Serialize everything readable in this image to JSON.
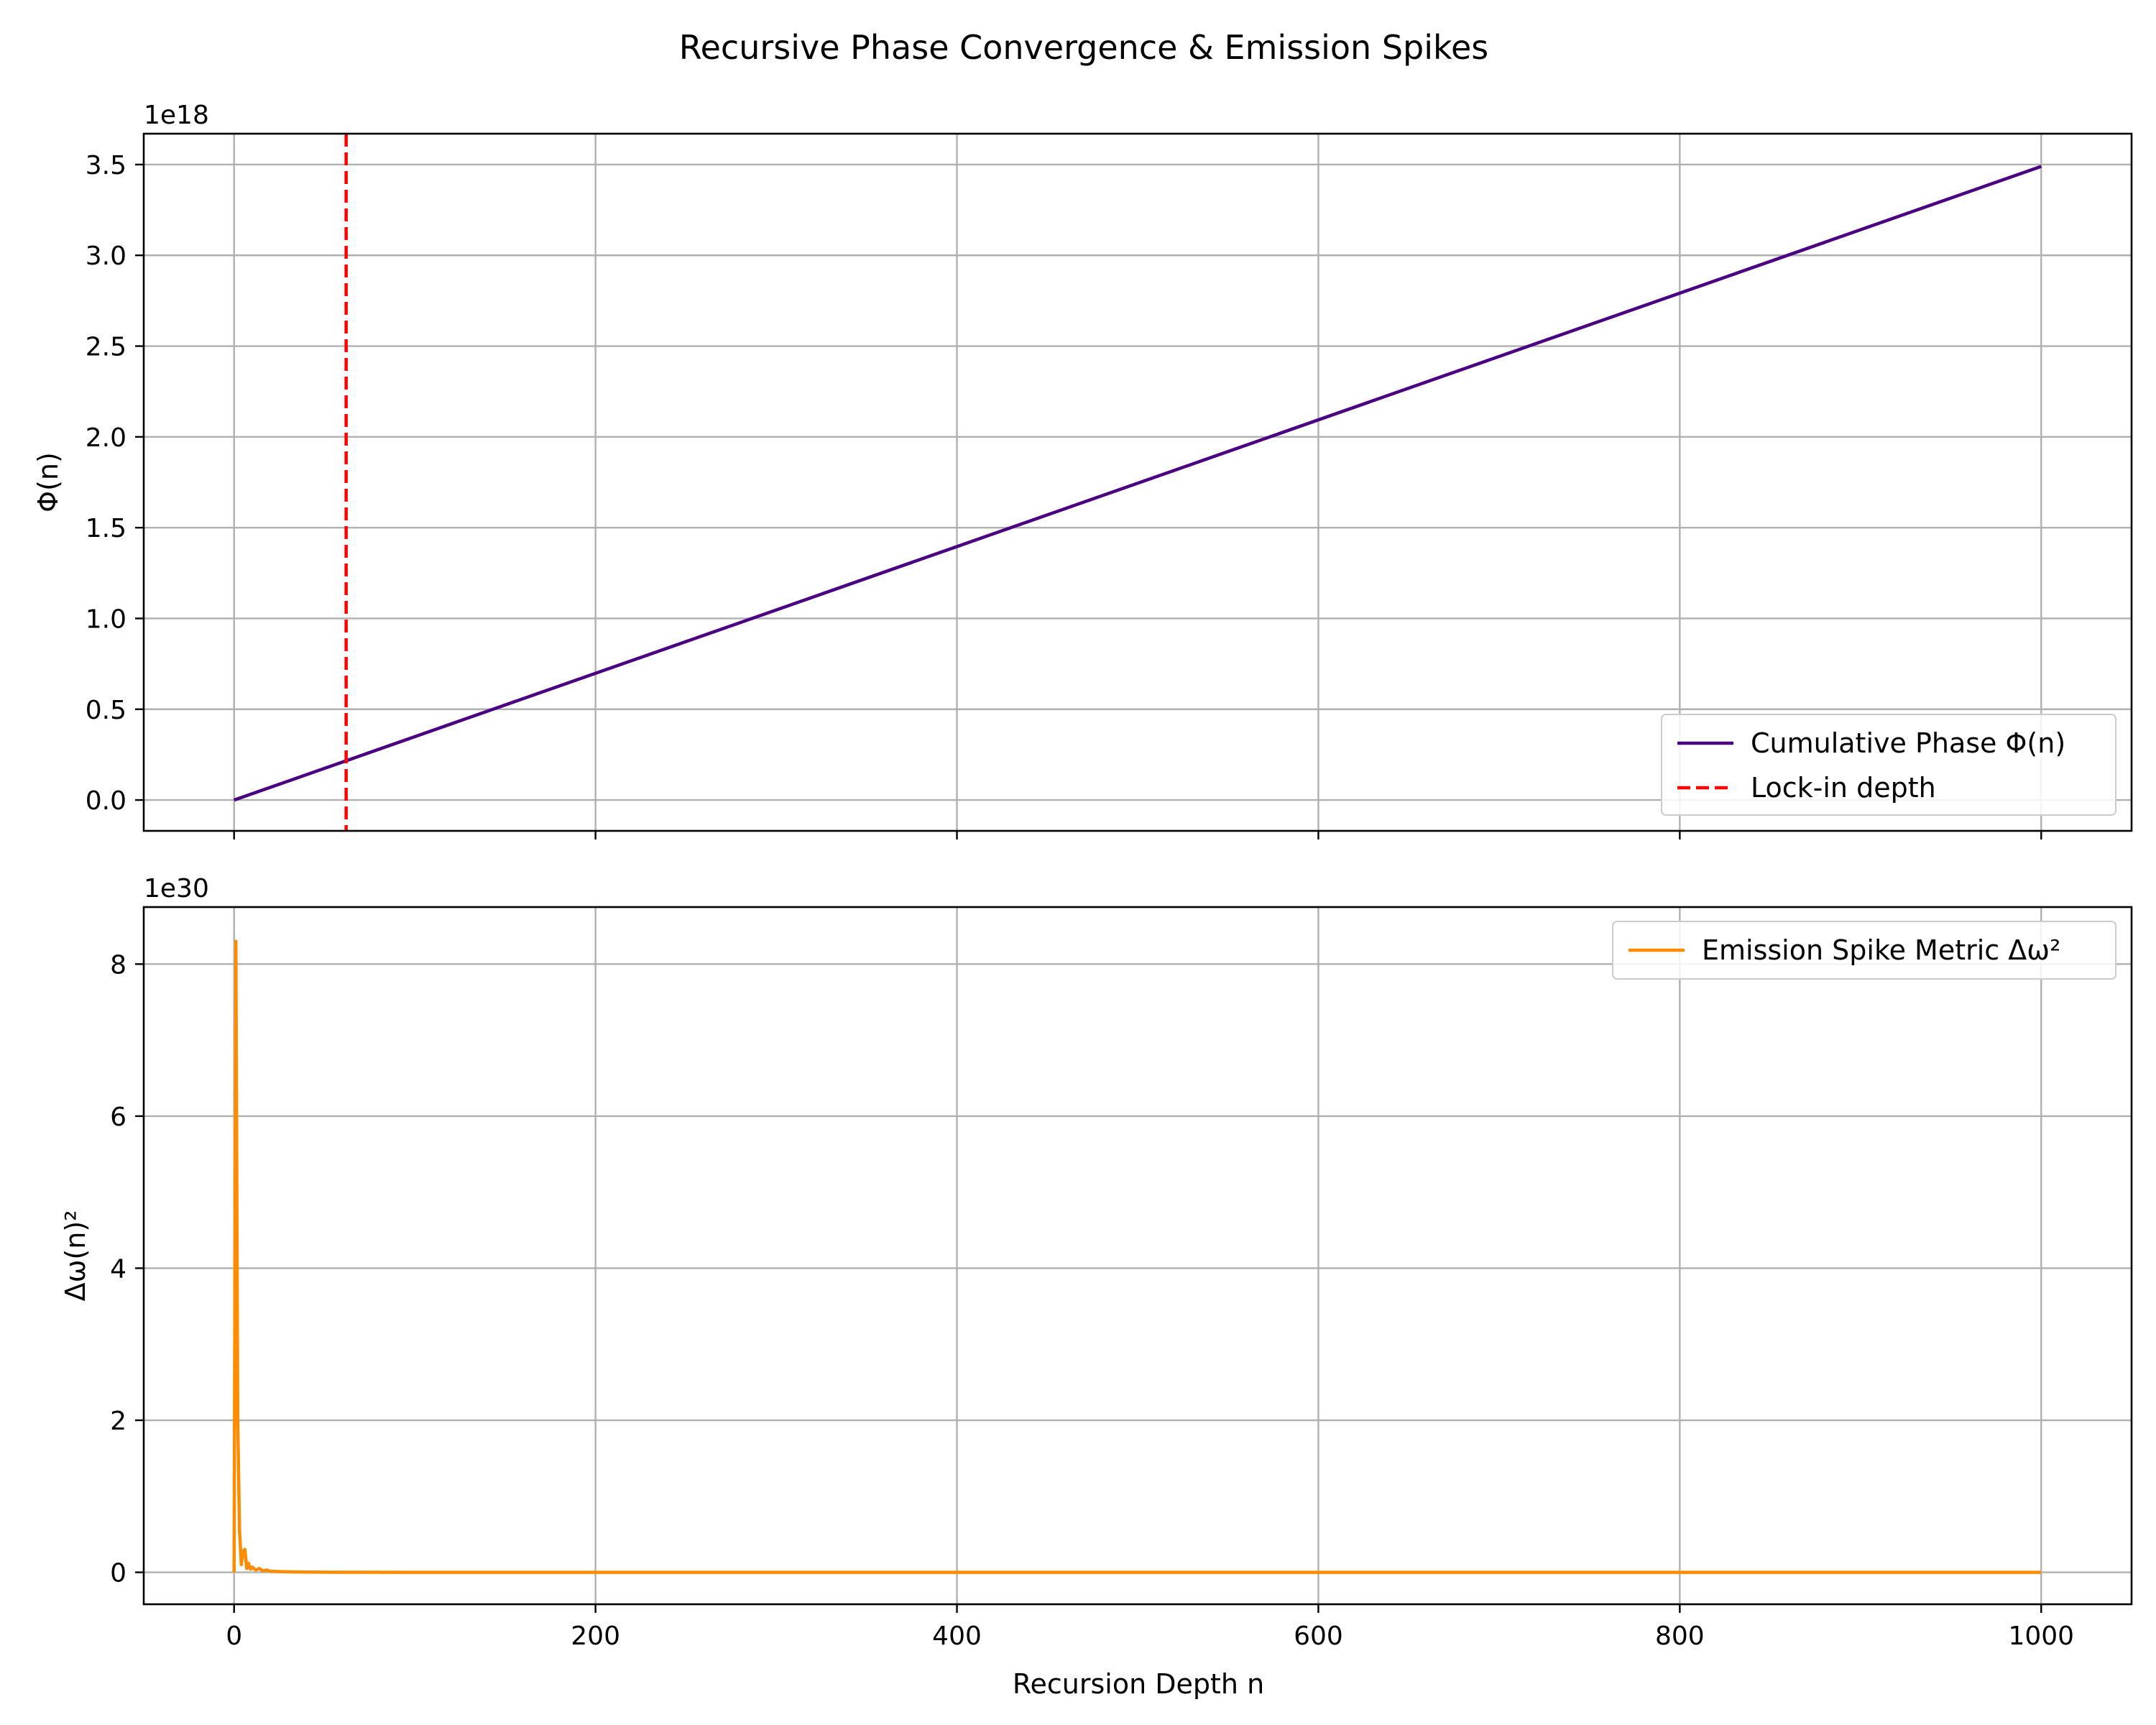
{
  "figure_title": "Recursive Phase Convergence & Emission Spikes",
  "x_tick_labels": [
    "0",
    "200",
    "400",
    "600",
    "800",
    "1000"
  ],
  "xlabel": "Recursion Depth n",
  "chart_data": [
    {
      "type": "line",
      "title": "",
      "ylabel": "Φ(n)",
      "offset_label": "1e18",
      "xlim": [
        -50,
        1050
      ],
      "ylim": [
        -0.17,
        3.67
      ],
      "y_ticks": [
        0.0,
        0.5,
        1.0,
        1.5,
        2.0,
        2.5,
        3.0,
        3.5
      ],
      "y_tick_labels": [
        "0.0",
        "0.5",
        "1.0",
        "1.5",
        "2.0",
        "2.5",
        "3.0",
        "3.5"
      ],
      "x_ticks": [
        0,
        200,
        400,
        600,
        800,
        1000
      ],
      "grid": true,
      "legend": {
        "placement": "lower right",
        "entries": [
          "Cumulative Phase Φ(n)",
          "Lock-in depth"
        ]
      },
      "series": [
        {
          "name": "Cumulative Phase Φ(n)",
          "color": "#4b0082",
          "style": "solid",
          "x": [
            0,
            1000
          ],
          "y": [
            0.0,
            3.49
          ]
        }
      ],
      "vlines": [
        {
          "name": "Lock-in depth",
          "color": "#ff0000",
          "style": "dashed",
          "x": 62
        }
      ]
    },
    {
      "type": "line",
      "title": "",
      "ylabel": "Δω(n)²",
      "offset_label": "1e30",
      "xlim": [
        -50,
        1050
      ],
      "ylim": [
        -0.42,
        8.75
      ],
      "y_ticks": [
        0,
        2,
        4,
        6,
        8
      ],
      "y_tick_labels": [
        "0",
        "2",
        "4",
        "6",
        "8"
      ],
      "x_ticks": [
        0,
        200,
        400,
        600,
        800,
        1000
      ],
      "grid": true,
      "legend": {
        "placement": "upper right",
        "entries": [
          "Emission Spike Metric Δω²"
        ]
      },
      "series": [
        {
          "name": "Emission Spike Metric Δω²",
          "color": "#ff8c00",
          "style": "solid",
          "x": [
            0,
            1,
            2,
            3,
            4,
            5,
            6,
            7,
            8,
            9,
            10,
            12,
            14,
            16,
            18,
            20,
            25,
            30,
            40,
            60,
            100,
            200,
            400,
            600,
            800,
            1000
          ],
          "y": [
            0.0,
            8.3,
            2.0,
            0.55,
            0.1,
            0.28,
            0.3,
            0.05,
            0.12,
            0.04,
            0.07,
            0.03,
            0.05,
            0.02,
            0.03,
            0.015,
            0.01,
            0.006,
            0.003,
            0.001,
            0.0,
            0.0,
            0.0,
            0.0,
            0.0,
            0.0
          ]
        }
      ]
    }
  ]
}
